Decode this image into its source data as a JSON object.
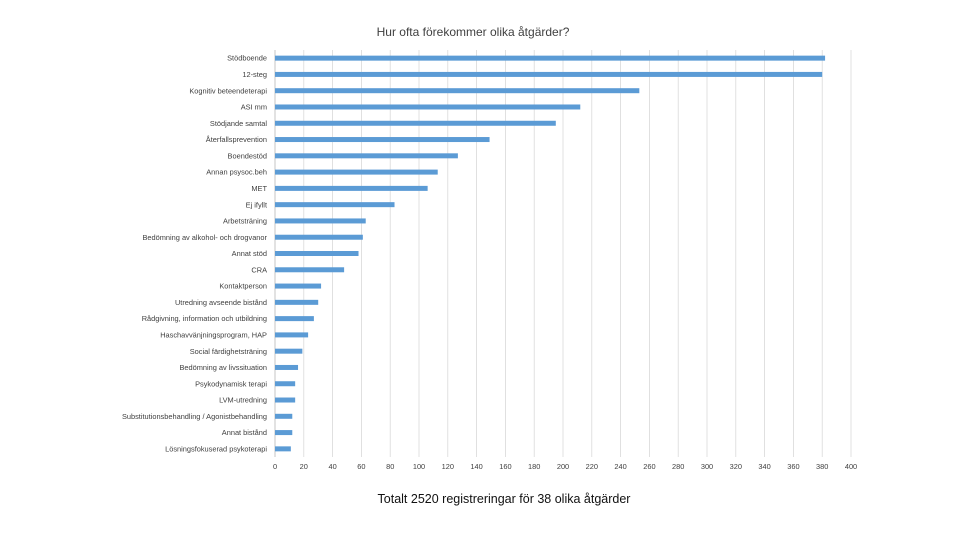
{
  "chart_data": {
    "type": "bar",
    "orientation": "horizontal",
    "title": "Hur ofta förekommer olika åtgärder?",
    "categories": [
      "Stödboende",
      "12-steg",
      "Kognitiv beteendeterapi",
      "ASI mm",
      "Stödjande samtal",
      "Återfallsprevention",
      "Boendestöd",
      "Annan psysoc.beh",
      "MET",
      "Ej ifyllt",
      "Arbetsträning",
      "Bedömning av alkohol- och drogvanor",
      "Annat stöd",
      "CRA",
      "Kontaktperson",
      "Utredning avseende bistånd",
      "Rådgivning, information och utbildning",
      "Haschavvänjningsprogram, HAP",
      "Social färdighetsträning",
      "Bedömning av livssituation",
      "Psykodynamisk terapi",
      "LVM-utredning",
      "Substitutionsbehandling / Agonistbehandling",
      "Annat bistånd",
      "Lösningsfokuserad psykoterapi"
    ],
    "values": [
      382,
      380,
      253,
      212,
      195,
      149,
      127,
      113,
      106,
      83,
      63,
      61,
      58,
      48,
      32,
      30,
      27,
      23,
      19,
      16,
      14,
      14,
      12,
      12,
      11
    ],
    "xlim": [
      0,
      400
    ],
    "xticks": [
      "0",
      "20",
      "40",
      "60",
      "80",
      "100",
      "120",
      "140",
      "160",
      "180",
      "200",
      "220",
      "240",
      "260",
      "280",
      "300",
      "320",
      "340",
      "360",
      "380",
      "400"
    ],
    "grid": true,
    "bar_color": "#5b9bd5"
  },
  "footer_note": "Totalt 2520 registreringar för 38 olika åtgärder"
}
